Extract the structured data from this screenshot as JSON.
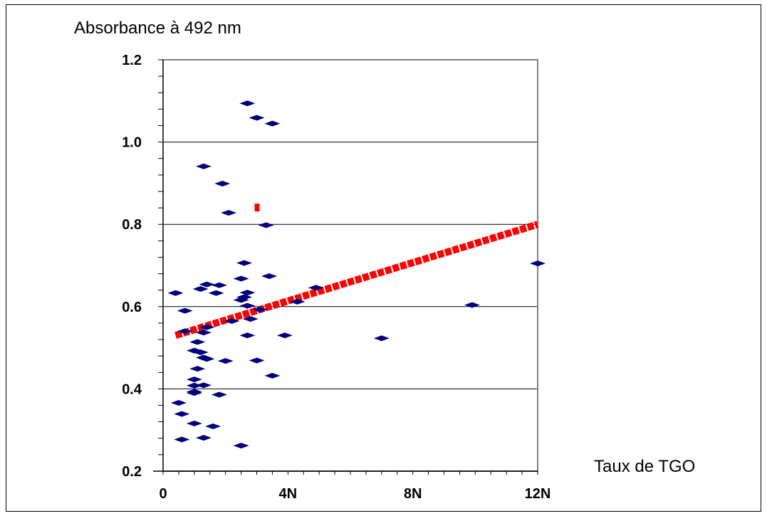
{
  "chart_data": {
    "type": "scatter",
    "ylabel": "Absorbance à 492 nm",
    "xlabel": "Taux de TGO",
    "xlim": [
      0,
      12
    ],
    "ylim": [
      0.2,
      1.2
    ],
    "x_ticks": [
      {
        "value": 0,
        "label": "0"
      },
      {
        "value": 4,
        "label": "4N"
      },
      {
        "value": 8,
        "label": "8N"
      },
      {
        "value": 12,
        "label": "12N"
      }
    ],
    "y_ticks": [
      {
        "value": 0.2,
        "label": "0.2"
      },
      {
        "value": 0.4,
        "label": "0.4"
      },
      {
        "value": 0.6,
        "label": "0.6"
      },
      {
        "value": 0.8,
        "label": "0.8"
      },
      {
        "value": 1.0,
        "label": "1.0"
      },
      {
        "value": 1.2,
        "label": "1.2"
      }
    ],
    "grid": {
      "horizontal": true,
      "vertical": false
    },
    "colors": {
      "points": "#00007f",
      "trend": "#ff0000",
      "plot_border": "#808080",
      "grid": "#000000"
    },
    "series": [
      {
        "points": [
          [
            0.4,
            0.633
          ],
          [
            0.6,
            0.339
          ],
          [
            0.5,
            0.366
          ],
          [
            0.7,
            0.59
          ],
          [
            0.7,
            0.54
          ],
          [
            0.6,
            0.277
          ],
          [
            1.0,
            0.316
          ],
          [
            1.0,
            0.423
          ],
          [
            1.0,
            0.408
          ],
          [
            1.0,
            0.393
          ],
          [
            1.0,
            0.39
          ],
          [
            1.1,
            0.449
          ],
          [
            1.1,
            0.514
          ],
          [
            1.0,
            0.493
          ],
          [
            1.2,
            0.489
          ],
          [
            1.3,
            0.476
          ],
          [
            1.4,
            0.473
          ],
          [
            1.3,
            0.409
          ],
          [
            1.3,
            0.281
          ],
          [
            1.2,
            0.643
          ],
          [
            1.4,
            0.654
          ],
          [
            1.4,
            0.55
          ],
          [
            1.3,
            0.537
          ],
          [
            1.3,
            0.941
          ],
          [
            1.6,
            0.309
          ],
          [
            1.7,
            0.633
          ],
          [
            1.8,
            0.652
          ],
          [
            1.8,
            0.386
          ],
          [
            1.9,
            0.899
          ],
          [
            2.0,
            0.468
          ],
          [
            2.1,
            0.828
          ],
          [
            2.2,
            0.565
          ],
          [
            2.5,
            0.262
          ],
          [
            2.5,
            0.668
          ],
          [
            2.5,
            0.616
          ],
          [
            2.6,
            0.706
          ],
          [
            2.7,
            0.634
          ],
          [
            2.6,
            0.623
          ],
          [
            2.7,
            0.602
          ],
          [
            2.8,
            0.57
          ],
          [
            2.7,
            0.53
          ],
          [
            2.7,
            1.094
          ],
          [
            3.0,
            1.059
          ],
          [
            3.0,
            0.469
          ],
          [
            3.1,
            0.593
          ],
          [
            3.3,
            0.798
          ],
          [
            3.4,
            0.674
          ],
          [
            3.5,
            1.045
          ],
          [
            3.5,
            0.432
          ],
          [
            3.9,
            0.53
          ],
          [
            4.3,
            0.612
          ],
          [
            4.9,
            0.646
          ],
          [
            7.0,
            0.523
          ],
          [
            9.9,
            0.604
          ],
          [
            12.0,
            0.705
          ]
        ]
      }
    ],
    "trendline": {
      "from": [
        0.4,
        0.53
      ],
      "to": [
        12.0,
        0.8
      ]
    },
    "outlier_mark": {
      "point": [
        3.0,
        0.84
      ]
    }
  }
}
